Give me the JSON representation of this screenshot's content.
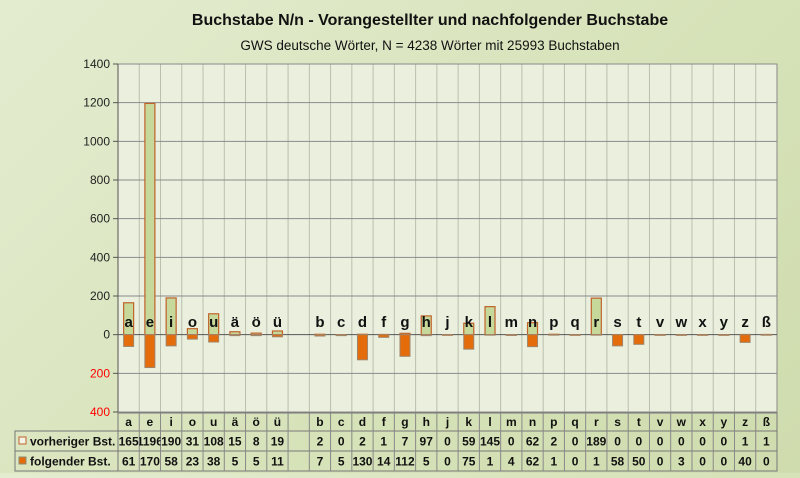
{
  "chart_data": {
    "type": "bar",
    "title": "Buchstabe N/n - Vorangestellter und nachfolgender Buchstabe",
    "subtitle": "GWS deutsche Wörter, N = 4238 Wörter mit 25993 Buchstaben",
    "categories": [
      "a",
      "e",
      "i",
      "o",
      "u",
      "ä",
      "ö",
      "ü",
      "",
      "b",
      "c",
      "d",
      "f",
      "g",
      "h",
      "j",
      "k",
      "l",
      "m",
      "n",
      "p",
      "q",
      "r",
      "s",
      "t",
      "v",
      "w",
      "x",
      "y",
      "z",
      "ß"
    ],
    "series": [
      {
        "name": "vorheriger Bst.",
        "direction": "up",
        "color": "#c6d99a",
        "border": "#c0622a",
        "values": [
          165,
          1196,
          190,
          31,
          108,
          15,
          8,
          19,
          null,
          2,
          0,
          2,
          1,
          7,
          97,
          0,
          59,
          145,
          0,
          62,
          2,
          0,
          189,
          0,
          0,
          0,
          0,
          0,
          0,
          1,
          1
        ]
      },
      {
        "name": "folgender Bst.",
        "direction": "down",
        "color": "#e46c0a",
        "border": "#a0866a",
        "values": [
          61,
          170,
          58,
          23,
          38,
          5,
          5,
          11,
          null,
          7,
          5,
          130,
          14,
          112,
          5,
          0,
          75,
          1,
          4,
          62,
          1,
          0,
          1,
          58,
          50,
          0,
          3,
          0,
          0,
          40,
          0
        ]
      }
    ],
    "ylim": [
      -400,
      1400
    ],
    "yticks": [
      {
        "value": 1400,
        "label": "1400"
      },
      {
        "value": 1200,
        "label": "1200"
      },
      {
        "value": 1000,
        "label": "1000"
      },
      {
        "value": 800,
        "label": "800"
      },
      {
        "value": 600,
        "label": "600"
      },
      {
        "value": 400,
        "label": "400"
      },
      {
        "value": 200,
        "label": "200"
      },
      {
        "value": 0,
        "label": "0"
      },
      {
        "value": -200,
        "label": "200"
      },
      {
        "value": -400,
        "label": "400"
      }
    ],
    "negative_tick_color": "#ff0000",
    "grid": true,
    "legend": "data-table-bottom"
  }
}
